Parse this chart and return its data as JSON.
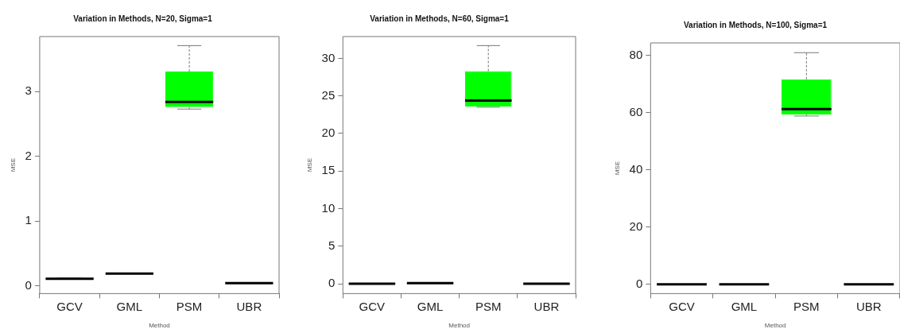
{
  "chart_data": [
    {
      "type": "box",
      "title": "Variation in Methods, N=20, Sigma=1",
      "xlabel": "Method",
      "ylabel": "MSE",
      "categories": [
        "GCV",
        "GML",
        "PSM",
        "UBR"
      ],
      "ylim": [
        -0.12,
        3.85
      ],
      "yticks": [
        0,
        1,
        2,
        3
      ],
      "series": [
        {
          "colors": [
            "#000000",
            "#000000",
            "#00ff00",
            "#000000"
          ],
          "boxes": [
            {
              "low": 0.1,
              "q1": 0.1,
              "median": 0.11,
              "q3": 0.12,
              "high": 0.12
            },
            {
              "low": 0.19,
              "q1": 0.19,
              "median": 0.19,
              "q3": 0.19,
              "high": 0.19
            },
            {
              "low": 2.73,
              "q1": 2.76,
              "median": 2.84,
              "q3": 3.31,
              "high": 3.71
            },
            {
              "low": 0.04,
              "q1": 0.04,
              "median": 0.04,
              "q3": 0.04,
              "high": 0.04
            }
          ]
        }
      ]
    },
    {
      "type": "box",
      "title": "Variation in Methods, N=60, Sigma=1",
      "xlabel": "Method",
      "ylabel": "MSE",
      "categories": [
        "GCV",
        "GML",
        "PSM",
        "UBR"
      ],
      "ylim": [
        -1.3,
        32.9
      ],
      "yticks": [
        0,
        5,
        10,
        15,
        20,
        25,
        30
      ],
      "series": [
        {
          "colors": [
            "#000000",
            "#000000",
            "#00ff00",
            "#000000"
          ],
          "boxes": [
            {
              "low": 0,
              "q1": 0,
              "median": 0,
              "q3": 0,
              "high": 0
            },
            {
              "low": 0.1,
              "q1": 0.1,
              "median": 0.1,
              "q3": 0.1,
              "high": 0.1
            },
            {
              "low": 23.5,
              "q1": 23.6,
              "median": 24.4,
              "q3": 28.3,
              "high": 31.7
            },
            {
              "low": 0,
              "q1": 0,
              "median": 0,
              "q3": 0,
              "high": 0
            }
          ]
        }
      ]
    },
    {
      "type": "box",
      "title": "Variation in Methods, N=100, Sigma=1",
      "xlabel": "Method",
      "ylabel": "MSE",
      "categories": [
        "GCV",
        "GML",
        "PSM",
        "UBR"
      ],
      "ylim": [
        -3.2,
        84.3
      ],
      "yticks": [
        0,
        20,
        40,
        60,
        80
      ],
      "series": [
        {
          "colors": [
            "#000000",
            "#000000",
            "#00ff00",
            "#000000"
          ],
          "boxes": [
            {
              "low": 0,
              "q1": 0,
              "median": 0,
              "q3": 0,
              "high": 0
            },
            {
              "low": 0,
              "q1": 0,
              "median": 0,
              "q3": 0,
              "high": 0
            },
            {
              "low": 58.8,
              "q1": 59.3,
              "median": 61.2,
              "q3": 71.6,
              "high": 80.9
            },
            {
              "low": 0,
              "q1": 0,
              "median": 0,
              "q3": 0,
              "high": 0
            }
          ]
        }
      ]
    }
  ]
}
